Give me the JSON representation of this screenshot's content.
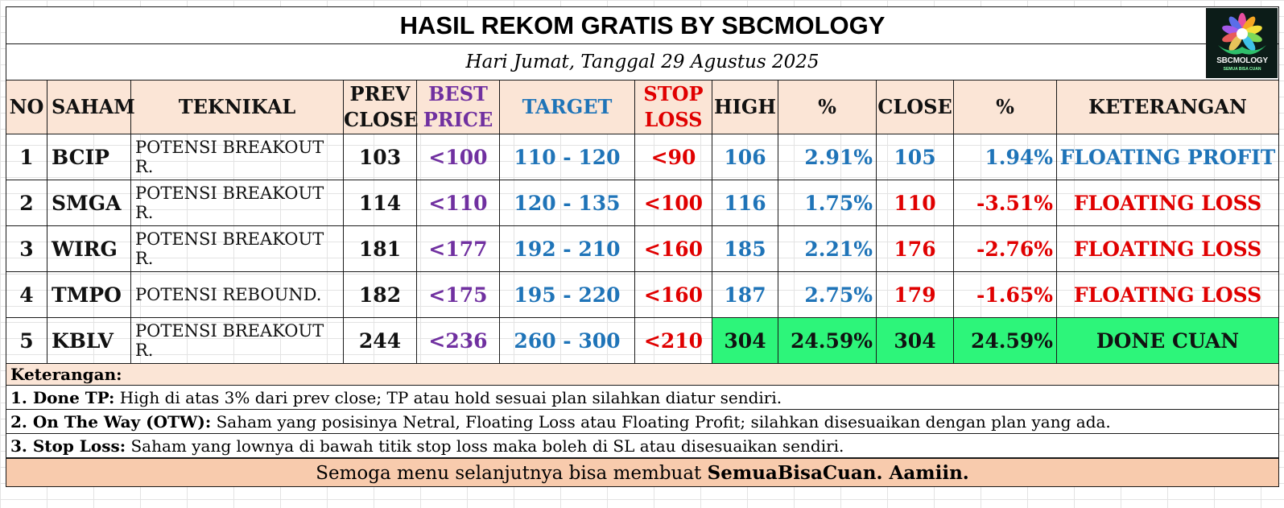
{
  "title": "HASIL REKOM GRATIS BY SBCMOLOGY",
  "date": "Hari Jumat, Tanggal 29 Agustus 2025",
  "logo": {
    "text": "SBCMOLOGY",
    "tagline": "SEMUA BISA CUAN"
  },
  "headers": {
    "no": "NO",
    "saham": "SAHAM",
    "teknikal": "TEKNIKAL",
    "prev_close": [
      "PREV",
      "CLOSE"
    ],
    "best_price": [
      "BEST",
      "PRICE"
    ],
    "target": "TARGET",
    "stop_loss": [
      "STOP",
      "LOSS"
    ],
    "high": "HIGH",
    "pct_high": "%",
    "close": "CLOSE",
    "pct_close": "%",
    "keterangan": "KETERANGAN"
  },
  "rows": [
    {
      "no": "1",
      "saham": "BCIP",
      "teknikal": "POTENSI BREAKOUT R.",
      "prev_close": "103",
      "best_price": "<100",
      "target": "110 - 120",
      "stop_loss": "<90",
      "high": "106",
      "pct_high": "2.91%",
      "close": "105",
      "pct_close": "1.94%",
      "keterangan": "FLOATING PROFIT"
    },
    {
      "no": "2",
      "saham": "SMGA",
      "teknikal": "POTENSI BREAKOUT R.",
      "prev_close": "114",
      "best_price": "<110",
      "target": "120 - 135",
      "stop_loss": "<100",
      "high": "116",
      "pct_high": "1.75%",
      "close": "110",
      "pct_close": "-3.51%",
      "keterangan": "FLOATING LOSS"
    },
    {
      "no": "3",
      "saham": "WIRG",
      "teknikal": "POTENSI BREAKOUT R.",
      "prev_close": "181",
      "best_price": "<177",
      "target": "192 - 210",
      "stop_loss": "<160",
      "high": "185",
      "pct_high": "2.21%",
      "close": "176",
      "pct_close": "-2.76%",
      "keterangan": "FLOATING LOSS"
    },
    {
      "no": "4",
      "saham": "TMPO",
      "teknikal": "POTENSI REBOUND.",
      "prev_close": "182",
      "best_price": "<175",
      "target": "195 - 220",
      "stop_loss": "<160",
      "high": "187",
      "pct_high": "2.75%",
      "close": "179",
      "pct_close": "-1.65%",
      "keterangan": "FLOATING LOSS"
    },
    {
      "no": "5",
      "saham": "KBLV",
      "teknikal": "POTENSI BREAKOUT R.",
      "prev_close": "244",
      "best_price": "<236",
      "target": "260 - 300",
      "stop_loss": "<210",
      "high": "304",
      "pct_high": "24.59%",
      "close": "304",
      "pct_close": "24.59%",
      "keterangan": "DONE CUAN"
    }
  ],
  "notes": {
    "heading": "Keterangan:",
    "items": [
      {
        "label": "1. Done TP:",
        "text": " High di atas 3% dari prev close; TP atau hold sesuai plan silahkan diatur sendiri."
      },
      {
        "label": "2. On The Way (OTW):",
        "text": " Saham yang posisinya Netral, Floating Loss atau Floating Profit; silahkan disesuaikan dengan plan yang ada."
      },
      {
        "label": "3. Stop Loss:",
        "text": " Saham yang lownya di bawah titik stop loss maka boleh di SL atau disesuaikan sendiri."
      }
    ]
  },
  "footer": {
    "prefix": "Semoga menu selanjutnya bisa membuat ",
    "bold": "SemuaBisaCuan. Aamiin."
  },
  "colors": {
    "header_bg": "#fbe5d6",
    "footer_bg": "#f8cbad",
    "done_bg": "#2df57a",
    "purple": "#7030a0",
    "blue": "#1f74b8",
    "red": "#e00000"
  }
}
